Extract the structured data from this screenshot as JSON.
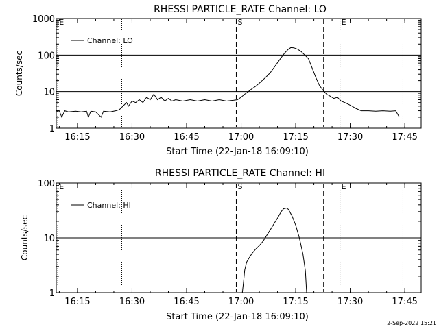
{
  "footer_date": "2-Sep-2022 15:21",
  "chart_data": [
    {
      "type": "line",
      "title": "RHESSI PARTICLE_RATE Channel: LO",
      "xlabel": "Start Time (22-Jan-18 16:09:10)",
      "ylabel": "Counts/sec",
      "y_scale": "log",
      "xlim": [
        "16:09:10",
        "17:49:30"
      ],
      "ylim": [
        1,
        1000
      ],
      "x_ticks": [
        "16:15",
        "16:30",
        "16:45",
        "17:00",
        "17:15",
        "17:30",
        "17:45"
      ],
      "y_ticks": [
        "1",
        "10",
        "100",
        "1000"
      ],
      "legend": "Channel: LO",
      "markers": [
        {
          "time": "16:09:35",
          "style": "dotted",
          "label": "E"
        },
        {
          "time": "16:27:10",
          "style": "dotted",
          "label": ""
        },
        {
          "time": "16:58:40",
          "style": "dashed",
          "label": "S"
        },
        {
          "time": "17:22:40",
          "style": "dashed",
          "label": ""
        },
        {
          "time": "17:27:10",
          "style": "dotted",
          "label": "E"
        },
        {
          "time": "17:44:30",
          "style": "dotted",
          "label": ""
        }
      ],
      "series": [
        {
          "points": [
            [
              "16:09:10",
              2.8
            ],
            [
              "16:10:00",
              3.0
            ],
            [
              "16:10:40",
              2.0
            ],
            [
              "16:11:30",
              3.0
            ],
            [
              "16:12:30",
              2.8
            ],
            [
              "16:14:30",
              2.9
            ],
            [
              "16:16:00",
              2.8
            ],
            [
              "16:17:30",
              2.9
            ],
            [
              "16:18:00",
              2.0
            ],
            [
              "16:18:40",
              2.9
            ],
            [
              "16:20:00",
              2.8
            ],
            [
              "16:21:30",
              2.0
            ],
            [
              "16:22:10",
              2.9
            ],
            [
              "16:24:00",
              2.8
            ],
            [
              "16:25:30",
              3.0
            ],
            [
              "16:26:30",
              3.2
            ],
            [
              "16:27:30",
              4.0
            ],
            [
              "16:28:30",
              5.0
            ],
            [
              "16:29:00",
              4.0
            ],
            [
              "16:30:00",
              5.5
            ],
            [
              "16:31:00",
              5.0
            ],
            [
              "16:32:00",
              6.0
            ],
            [
              "16:33:00",
              5.0
            ],
            [
              "16:34:00",
              7.0
            ],
            [
              "16:35:00",
              6.0
            ],
            [
              "16:36:00",
              8.5
            ],
            [
              "16:37:00",
              6.0
            ],
            [
              "16:38:00",
              7.0
            ],
            [
              "16:39:00",
              5.5
            ],
            [
              "16:40:00",
              6.5
            ],
            [
              "16:41:00",
              5.5
            ],
            [
              "16:42:00",
              6.0
            ],
            [
              "16:44:00",
              5.5
            ],
            [
              "16:46:00",
              6.0
            ],
            [
              "16:48:00",
              5.5
            ],
            [
              "16:50:00",
              6.0
            ],
            [
              "16:52:00",
              5.5
            ],
            [
              "16:54:00",
              6.0
            ],
            [
              "16:56:00",
              5.5
            ],
            [
              "16:58:00",
              5.8
            ],
            [
              "16:59:00",
              6.0
            ],
            [
              "17:00:00",
              7.0
            ],
            [
              "17:01:00",
              8.5
            ],
            [
              "17:02:00",
              10.0
            ],
            [
              "17:03:00",
              12.0
            ],
            [
              "17:04:00",
              14.0
            ],
            [
              "17:05:00",
              17.0
            ],
            [
              "17:06:00",
              21.0
            ],
            [
              "17:07:00",
              26.0
            ],
            [
              "17:08:00",
              33.0
            ],
            [
              "17:09:00",
              45.0
            ],
            [
              "17:10:00",
              62.0
            ],
            [
              "17:11:00",
              85.0
            ],
            [
              "17:12:00",
              115.0
            ],
            [
              "17:13:00",
              145.0
            ],
            [
              "17:13:40",
              160.0
            ],
            [
              "17:14:30",
              158.0
            ],
            [
              "17:15:30",
              145.0
            ],
            [
              "17:16:30",
              125.0
            ],
            [
              "17:17:30",
              100.0
            ],
            [
              "17:18:30",
              80.0
            ],
            [
              "17:19:30",
              45.0
            ],
            [
              "17:20:30",
              25.0
            ],
            [
              "17:21:30",
              15.0
            ],
            [
              "17:22:30",
              11.0
            ],
            [
              "17:23:30",
              8.5
            ],
            [
              "17:24:30",
              7.5
            ],
            [
              "17:25:30",
              6.5
            ],
            [
              "17:26:30",
              7.0
            ],
            [
              "17:27:30",
              5.5
            ],
            [
              "17:28:30",
              5.0
            ],
            [
              "17:29:30",
              4.5
            ],
            [
              "17:30:30",
              4.0
            ],
            [
              "17:31:30",
              3.5
            ],
            [
              "17:33:00",
              3.0
            ],
            [
              "17:35:00",
              3.0
            ],
            [
              "17:37:00",
              2.9
            ],
            [
              "17:39:00",
              3.0
            ],
            [
              "17:41:00",
              2.9
            ],
            [
              "17:42:30",
              3.0
            ],
            [
              "17:43:30",
              2.0
            ]
          ]
        }
      ]
    },
    {
      "type": "line",
      "title": "RHESSI PARTICLE_RATE Channel: HI",
      "xlabel": "Start Time (22-Jan-18 16:09:10)",
      "ylabel": "Counts/sec",
      "y_scale": "log",
      "xlim": [
        "16:09:10",
        "17:49:30"
      ],
      "ylim": [
        1,
        100
      ],
      "x_ticks": [
        "16:15",
        "16:30",
        "16:45",
        "17:00",
        "17:15",
        "17:30",
        "17:45"
      ],
      "y_ticks": [
        "1",
        "10",
        "100"
      ],
      "legend": "Channel: HI",
      "markers": [
        {
          "time": "16:09:35",
          "style": "dotted",
          "label": "E"
        },
        {
          "time": "16:27:10",
          "style": "dotted",
          "label": ""
        },
        {
          "time": "16:58:40",
          "style": "dashed",
          "label": "S"
        },
        {
          "time": "17:22:40",
          "style": "dashed",
          "label": ""
        },
        {
          "time": "17:27:10",
          "style": "dotted",
          "label": "E"
        },
        {
          "time": "17:44:30",
          "style": "dotted",
          "label": ""
        }
      ],
      "series": [
        {
          "points": [
            [
              "17:00:20",
              1.0
            ],
            [
              "17:00:40",
              1.6
            ],
            [
              "17:01:00",
              2.6
            ],
            [
              "17:01:30",
              3.6
            ],
            [
              "17:02:00",
              4.1
            ],
            [
              "17:03:00",
              5.2
            ],
            [
              "17:04:00",
              6.2
            ],
            [
              "17:05:00",
              7.2
            ],
            [
              "17:06:00",
              8.6
            ],
            [
              "17:07:00",
              11.0
            ],
            [
              "17:08:00",
              14.0
            ],
            [
              "17:09:00",
              18.0
            ],
            [
              "17:10:00",
              23.0
            ],
            [
              "17:11:00",
              30.0
            ],
            [
              "17:11:40",
              34.0
            ],
            [
              "17:12:30",
              35.0
            ],
            [
              "17:13:00",
              33.0
            ],
            [
              "17:14:00",
              25.0
            ],
            [
              "17:15:00",
              17.0
            ],
            [
              "17:16:00",
              10.0
            ],
            [
              "17:17:00",
              5.0
            ],
            [
              "17:17:40",
              2.5
            ],
            [
              "17:18:00",
              1.0
            ]
          ]
        }
      ]
    }
  ]
}
